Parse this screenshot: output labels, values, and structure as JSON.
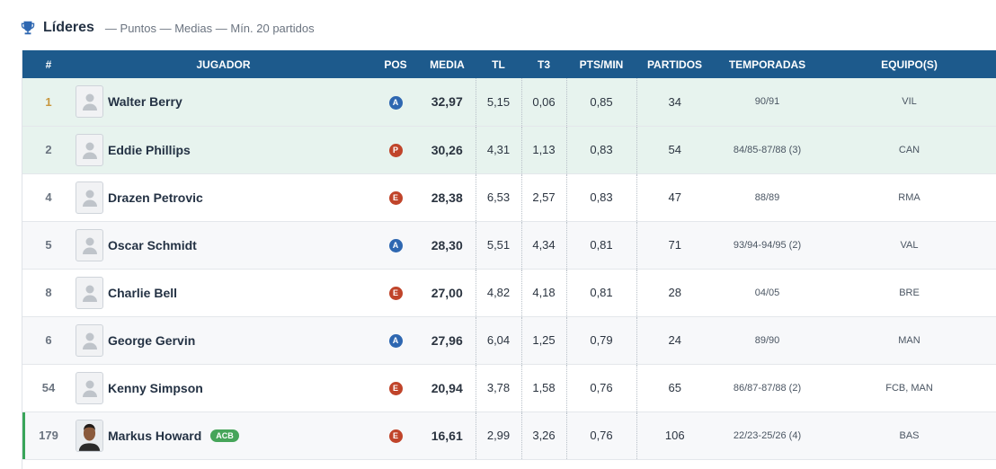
{
  "header": {
    "title": "Líderes",
    "subtitle": "— Puntos — Medias — Mín. 20 partidos",
    "icon": "trophy-icon"
  },
  "colors": {
    "header_bg": "#1d5a8c",
    "highlight_row": "#e7f3ee",
    "pos_A": "#2e67b1",
    "pos_E": "#c0442a",
    "tag": "#46a55a"
  },
  "columns": [
    "#",
    "JUGADOR",
    "POS",
    "MEDIA",
    "TL",
    "T3",
    "PTS/MIN",
    "PARTIDOS",
    "TEMPORADAS",
    "EQUIPO(S)"
  ],
  "rows": [
    {
      "rank": "1",
      "name": "Walter Berry",
      "pos": "A",
      "media": "32,97",
      "tl": "5,15",
      "t3": "0,06",
      "ptsmin": "0,85",
      "partidos": "34",
      "temporadas": "90/91",
      "equipos": "VIL"
    },
    {
      "rank": "2",
      "name": "Eddie Phillips",
      "pos": "P",
      "media": "30,26",
      "tl": "4,31",
      "t3": "1,13",
      "ptsmin": "0,83",
      "partidos": "54",
      "temporadas": "84/85-87/88 (3)",
      "equipos": "CAN"
    },
    {
      "rank": "4",
      "name": "Drazen Petrovic",
      "pos": "E",
      "media": "28,38",
      "tl": "6,53",
      "t3": "2,57",
      "ptsmin": "0,83",
      "partidos": "47",
      "temporadas": "88/89",
      "equipos": "RMA"
    },
    {
      "rank": "5",
      "name": "Oscar Schmidt",
      "pos": "A",
      "media": "28,30",
      "tl": "5,51",
      "t3": "4,34",
      "ptsmin": "0,81",
      "partidos": "71",
      "temporadas": "93/94-94/95 (2)",
      "equipos": "VAL"
    },
    {
      "rank": "8",
      "name": "Charlie Bell",
      "pos": "E",
      "media": "27,00",
      "tl": "4,82",
      "t3": "4,18",
      "ptsmin": "0,81",
      "partidos": "28",
      "temporadas": "04/05",
      "equipos": "BRE"
    },
    {
      "rank": "6",
      "name": "George Gervin",
      "pos": "A",
      "media": "27,96",
      "tl": "6,04",
      "t3": "1,25",
      "ptsmin": "0,79",
      "partidos": "24",
      "temporadas": "89/90",
      "equipos": "MAN"
    },
    {
      "rank": "54",
      "name": "Kenny Simpson",
      "pos": "E",
      "media": "20,94",
      "tl": "3,78",
      "t3": "1,58",
      "ptsmin": "0,76",
      "partidos": "65",
      "temporadas": "86/87-87/88 (2)",
      "equipos": "FCB, MAN"
    },
    {
      "rank": "179",
      "name": "Markus Howard",
      "tag": "ACB",
      "pos": "E",
      "media": "16,61",
      "tl": "2,99",
      "t3": "3,26",
      "ptsmin": "0,76",
      "partidos": "106",
      "temporadas": "22/23-25/26 (4)",
      "equipos": "BAS"
    }
  ]
}
